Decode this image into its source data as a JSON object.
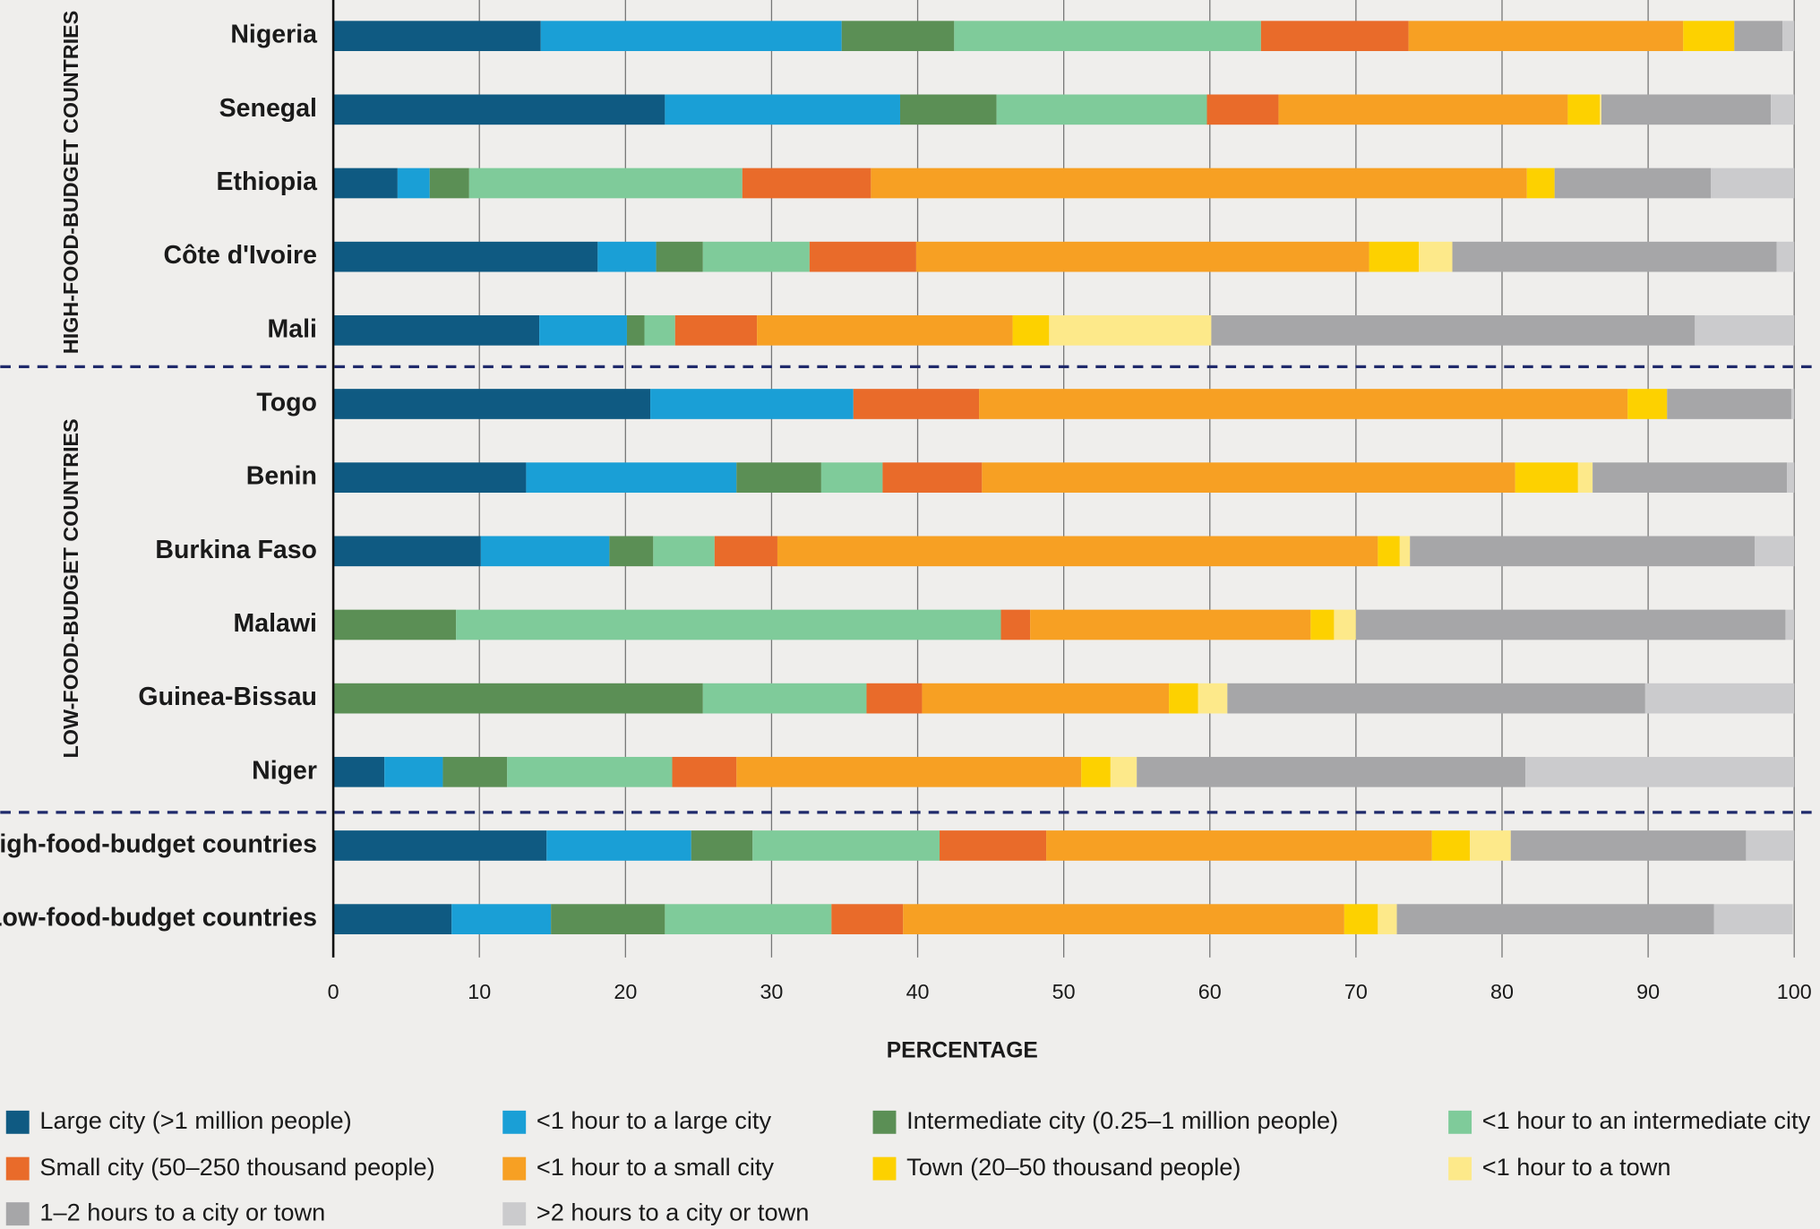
{
  "chart_data": {
    "type": "bar",
    "orientation": "horizontal",
    "stacked": true,
    "x_label": "PERCENTAGE",
    "annotations": [
      "HIGH-FOOD-BUDGET COUNTRIES",
      "LOW-FOOD-BUDGET COUNTRIES"
    ],
    "categories": [
      "Nigeria",
      "Senegal",
      "Ethiopia",
      "Côte d'Ivoire",
      "Mali",
      "Togo",
      "Benin",
      "Burkina Faso",
      "Malawi",
      "Guinea-Bissau",
      "Niger",
      "High-food-budget countries",
      "Low-food-budget countries"
    ],
    "xlim": [
      0,
      100
    ],
    "xticks": [
      0,
      10,
      20,
      30,
      40,
      50,
      60,
      70,
      80,
      90,
      100
    ],
    "grid": true,
    "series": [
      {
        "name": "Large city (>1 million people)",
        "color": "#0f5a82",
        "values": [
          14.2,
          22.7,
          4.4,
          18.1,
          14.1,
          21.7,
          13.2,
          10.1,
          0,
          0,
          3.5,
          14.6,
          8.1
        ]
      },
      {
        "name": "<1 hour to a large city",
        "color": "#1a9fd6",
        "values": [
          20.6,
          16.1,
          2.2,
          4.0,
          6.0,
          13.9,
          14.4,
          8.8,
          0,
          0,
          4.0,
          9.9,
          6.8
        ]
      },
      {
        "name": "Intermediate city (0.25–1 million people)",
        "color": "#5b8f55",
        "values": [
          7.7,
          6.6,
          2.7,
          3.2,
          1.2,
          0,
          5.8,
          3.0,
          8.4,
          25.3,
          4.4,
          4.2,
          7.8
        ]
      },
      {
        "name": "<1 hour to an intermediate city",
        "color": "#7fcb9a",
        "values": [
          21.0,
          14.4,
          18.7,
          7.3,
          2.1,
          0,
          4.2,
          4.2,
          37.3,
          11.2,
          11.3,
          12.8,
          11.4
        ]
      },
      {
        "name": "Small city (50–250 thousand people)",
        "color": "#e96b2a",
        "values": [
          10.1,
          4.9,
          8.8,
          7.3,
          5.6,
          8.6,
          6.8,
          4.3,
          2.0,
          3.8,
          4.4,
          7.3,
          4.9
        ]
      },
      {
        "name": "<1 hour to a small city",
        "color": "#f7a023",
        "values": [
          18.8,
          19.8,
          44.9,
          31.0,
          17.5,
          44.4,
          36.5,
          41.1,
          19.2,
          16.9,
          23.6,
          26.4,
          30.2
        ]
      },
      {
        "name": "Town (20–50 thousand people)",
        "color": "#fdd100",
        "values": [
          3.5,
          2.2,
          1.9,
          3.4,
          2.5,
          2.7,
          4.3,
          1.5,
          1.6,
          2.0,
          2.0,
          2.6,
          2.3
        ]
      },
      {
        "name": "<1 hour to a town",
        "color": "#fde98a",
        "values": [
          0,
          0.1,
          0,
          2.3,
          11.1,
          0,
          1.0,
          0.7,
          1.5,
          2.0,
          1.8,
          2.8,
          1.3
        ]
      },
      {
        "name": "1–2 hours to a city or town",
        "color": "#a6a6a8",
        "values": [
          3.3,
          11.6,
          10.7,
          22.2,
          33.1,
          8.5,
          13.3,
          23.6,
          29.4,
          28.6,
          26.6,
          16.1,
          21.7
        ]
      },
      {
        "name": ">2 hours to a city or town",
        "color": "#cbcbcd",
        "values": [
          0.8,
          1.6,
          5.7,
          1.2,
          6.8,
          0.2,
          0.5,
          2.7,
          0.6,
          10.2,
          18.4,
          3.3,
          5.4
        ]
      }
    ]
  }
}
